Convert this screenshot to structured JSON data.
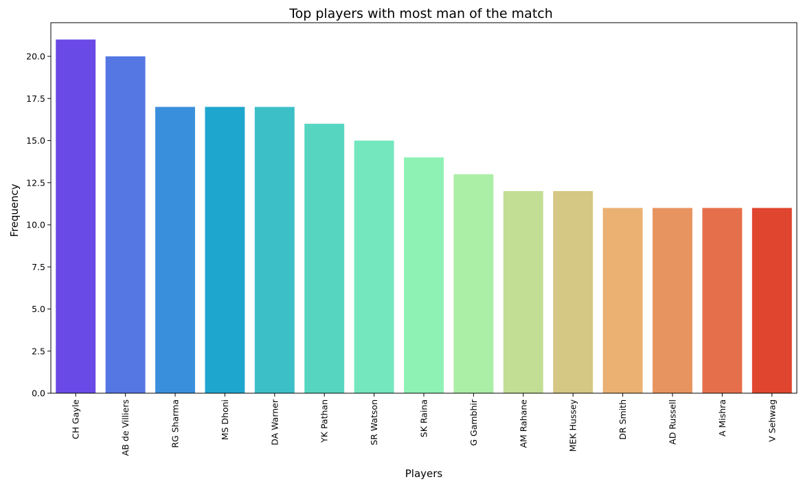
{
  "chart_data": {
    "type": "bar",
    "title": "Top players with most man of the match",
    "xlabel": "Players",
    "ylabel": "Frequency",
    "ylim": [
      0,
      22
    ],
    "yticks": [
      "0.0",
      "2.5",
      "5.0",
      "7.5",
      "10.0",
      "12.5",
      "15.0",
      "17.5",
      "20.0"
    ],
    "ytick_values": [
      0,
      2.5,
      5,
      7.5,
      10,
      12.5,
      15,
      17.5,
      20
    ],
    "grid": false,
    "palette": "rainbow",
    "categories": [
      "CH Gayle",
      "AB de Villiers",
      "RG Sharma",
      "MS Dhoni",
      "DA Warner",
      "YK Pathan",
      "SR Watson",
      "SK Raina",
      "G Gambhir",
      "AM Rahane",
      "MEK Hussey",
      "DR Smith",
      "AD Russell",
      "A Mishra",
      "V Sehwag"
    ],
    "values": [
      21,
      20,
      17,
      17,
      17,
      16,
      15,
      14,
      13,
      12,
      12,
      11,
      11,
      11,
      11
    ],
    "colors": [
      "#6a4ae6",
      "#5577e4",
      "#3a8fdd",
      "#1fa6cf",
      "#3dbfc8",
      "#56d6c1",
      "#74e7bf",
      "#8ff2b5",
      "#abeea6",
      "#c2de95",
      "#d5c784",
      "#ebb173",
      "#e89460",
      "#e66f4b",
      "#e0452f"
    ]
  }
}
